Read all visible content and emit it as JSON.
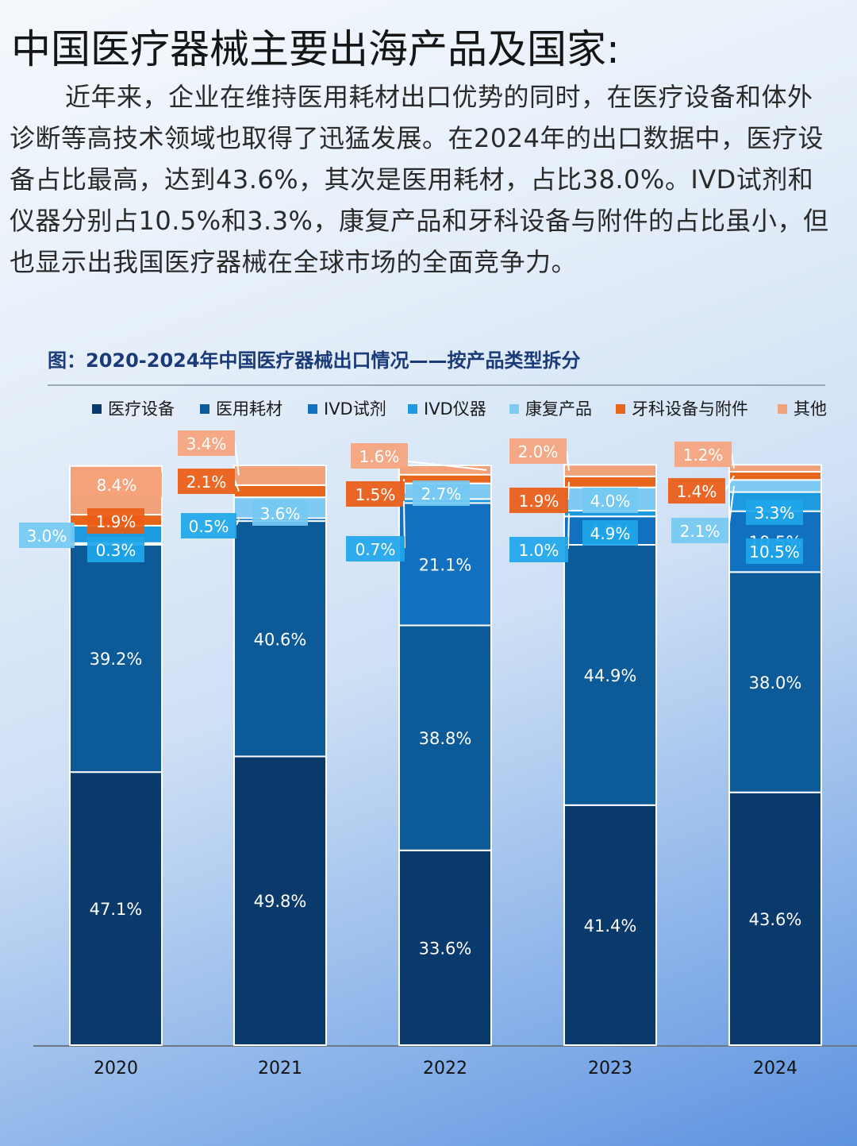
{
  "heading": "中国医疗器械主要出海产品及国家:",
  "intro": "近年来，企业在维持医用耗材出口优势的同时，在医疗设备和体外诊断等高技术领域也取得了迅猛发展。在2024年的出口数据中，医疗设备占比最高，达到43.6%，其次是医用耗材，占比38.0%。IVD试剂和仪器分别占10.5%和3.3%，康复产品和牙科设备与附件的占比虽小，但也显示出我国医疗器械在全球市场的全面竞争力。",
  "chart_data": {
    "type": "bar",
    "stacked": true,
    "title": "图：2020-2024年中国医疗器械出口情况——按产品类型拆分",
    "xlabel": "",
    "ylabel": "",
    "ylim": [
      0,
      100
    ],
    "legend_position": "top",
    "categories": [
      "2020",
      "2021",
      "2022",
      "2023",
      "2024"
    ],
    "series": [
      {
        "name": "医疗设备",
        "color": "#0a3a6b",
        "values": [
          47.1,
          49.8,
          33.6,
          41.4,
          43.6
        ],
        "labels": [
          "47.1%",
          "49.8%",
          "33.6%",
          "41.4%",
          "43.6%"
        ]
      },
      {
        "name": "医用耗材",
        "color": "#0d5a99",
        "values": [
          39.2,
          40.6,
          38.8,
          44.9,
          38.0
        ],
        "labels": [
          "39.2%",
          "40.6%",
          "38.8%",
          "44.9%",
          "38.0%"
        ]
      },
      {
        "name": "IVD试剂",
        "color": "#1170c0",
        "values": [
          0.3,
          0.5,
          21.1,
          4.9,
          10.5
        ],
        "labels": [
          "0.3%",
          "0.5%",
          "21.1%",
          "4.9%",
          "10.5%"
        ]
      },
      {
        "name": "IVD仪器",
        "color": "#1e9be0",
        "values": [
          3.0,
          0.0,
          0.7,
          1.0,
          3.3
        ],
        "labels": [
          "3.0%",
          "",
          "0.7%",
          "1.0%",
          "3.3%"
        ]
      },
      {
        "name": "康复产品",
        "color": "#7fcaf2",
        "values": [
          0.0,
          3.6,
          2.7,
          4.0,
          2.1
        ],
        "labels": [
          "",
          "3.6%",
          "2.7%",
          "4.0%",
          "2.1%"
        ]
      },
      {
        "name": "牙科设备与附件",
        "color": "#e8661c",
        "values": [
          1.9,
          2.1,
          1.5,
          1.9,
          1.4
        ],
        "labels": [
          "1.9%",
          "2.1%",
          "1.5%",
          "1.9%",
          "1.4%"
        ]
      },
      {
        "name": "其他",
        "color": "#f2a27a",
        "values": [
          8.4,
          3.4,
          1.6,
          2.0,
          1.2
        ],
        "labels": [
          "8.4%",
          "3.4%",
          "1.6%",
          "2.0%",
          "1.2%"
        ]
      }
    ]
  }
}
